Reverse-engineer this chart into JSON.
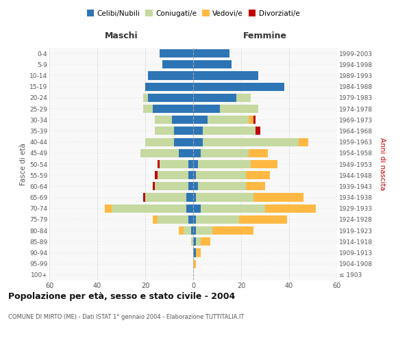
{
  "age_groups": [
    "100+",
    "95-99",
    "90-94",
    "85-89",
    "80-84",
    "75-79",
    "70-74",
    "65-69",
    "60-64",
    "55-59",
    "50-54",
    "45-49",
    "40-44",
    "35-39",
    "30-34",
    "25-29",
    "20-24",
    "15-19",
    "10-14",
    "5-9",
    "0-4"
  ],
  "birth_years": [
    "≤ 1903",
    "1904-1908",
    "1909-1913",
    "1914-1918",
    "1919-1923",
    "1924-1928",
    "1929-1933",
    "1934-1938",
    "1939-1943",
    "1944-1948",
    "1949-1953",
    "1954-1958",
    "1959-1963",
    "1964-1968",
    "1969-1973",
    "1974-1978",
    "1979-1983",
    "1984-1988",
    "1989-1993",
    "1994-1998",
    "1999-2003"
  ],
  "colors": {
    "celibi": "#2E75B6",
    "coniugati": "#C5D9A0",
    "vedovi": "#FFB943",
    "divorziati": "#C00000"
  },
  "maschi": {
    "celibi": [
      0,
      0,
      0,
      0,
      1,
      2,
      3,
      3,
      2,
      2,
      2,
      6,
      8,
      8,
      9,
      17,
      19,
      20,
      19,
      13,
      14
    ],
    "coniugati": [
      0,
      0,
      0,
      1,
      3,
      13,
      31,
      17,
      14,
      13,
      12,
      16,
      12,
      8,
      7,
      4,
      2,
      0,
      0,
      0,
      0
    ],
    "vedovi": [
      0,
      0,
      0,
      0,
      2,
      2,
      3,
      0,
      0,
      0,
      0,
      0,
      0,
      0,
      0,
      0,
      0,
      0,
      0,
      0,
      0
    ],
    "divorziati": [
      0,
      0,
      0,
      0,
      0,
      0,
      0,
      1,
      1,
      1,
      1,
      0,
      0,
      0,
      0,
      0,
      0,
      0,
      0,
      0,
      0
    ]
  },
  "femmine": {
    "celibi": [
      0,
      0,
      1,
      1,
      1,
      1,
      3,
      1,
      2,
      1,
      2,
      3,
      4,
      4,
      6,
      11,
      18,
      38,
      27,
      16,
      15
    ],
    "coniugati": [
      0,
      0,
      0,
      2,
      7,
      18,
      27,
      24,
      20,
      21,
      22,
      20,
      40,
      22,
      17,
      16,
      6,
      0,
      0,
      0,
      0
    ],
    "vedovi": [
      0,
      1,
      2,
      4,
      17,
      20,
      21,
      21,
      8,
      10,
      11,
      8,
      4,
      0,
      2,
      0,
      0,
      0,
      0,
      0,
      0
    ],
    "divorziati": [
      0,
      0,
      0,
      0,
      0,
      0,
      0,
      0,
      0,
      0,
      0,
      0,
      0,
      2,
      1,
      0,
      0,
      0,
      0,
      0,
      0
    ]
  },
  "title": "Popolazione per età, sesso e stato civile - 2004",
  "subtitle": "COMUNE DI MIRTO (ME) - Dati ISTAT 1° gennaio 2004 - Elaborazione TUTTITALIA.IT",
  "xlabel_left": "Maschi",
  "xlabel_right": "Femmine",
  "ylabel_left": "Fasce di età",
  "ylabel_right": "Anni di nascita",
  "xlim": 60,
  "legend_labels": [
    "Celibi/Nubili",
    "Coniugati/e",
    "Vedovi/e",
    "Divorziati/e"
  ],
  "bg_color": "#F8F8F8",
  "grid_color": "#CCCCCC"
}
